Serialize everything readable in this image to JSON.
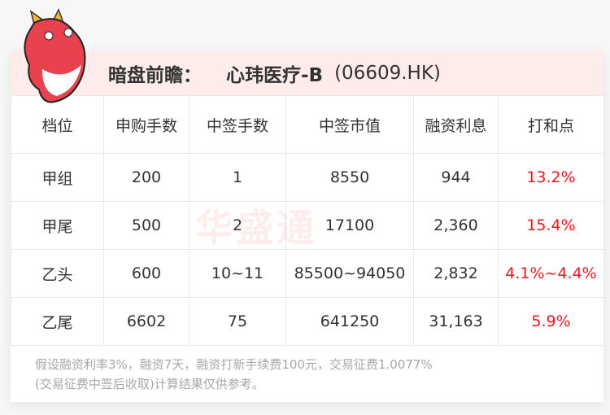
{
  "header": {
    "label": "暗盘前瞻：",
    "name": "心玮医疗-B",
    "code": "(06609.HK)"
  },
  "columns": [
    "档位",
    "申购手数",
    "中签手数",
    "中签市值",
    "融资利息",
    "打和点"
  ],
  "rows": [
    [
      "甲组",
      "200",
      "1",
      "8550",
      "944",
      "13.2%"
    ],
    [
      "甲尾",
      "500",
      "2",
      "17100",
      "2,360",
      "15.4%"
    ],
    [
      "乙头",
      "600",
      "10~11",
      "85500~94050",
      "2,832",
      "4.1%~4.4%"
    ],
    [
      "乙尾",
      "6602",
      "75",
      "641250",
      "31,163",
      "5.9%"
    ]
  ],
  "footnote": {
    "line1": "假设融资利率3%，融资7天，融资打新手续费100元，交易征费1.0077%",
    "line2": "(交易征费中签后收取)计算结果仅供参考。"
  },
  "watermark": "华盛通",
  "colors": {
    "accent": "#f0141e",
    "header_bg": "#fdecea"
  }
}
